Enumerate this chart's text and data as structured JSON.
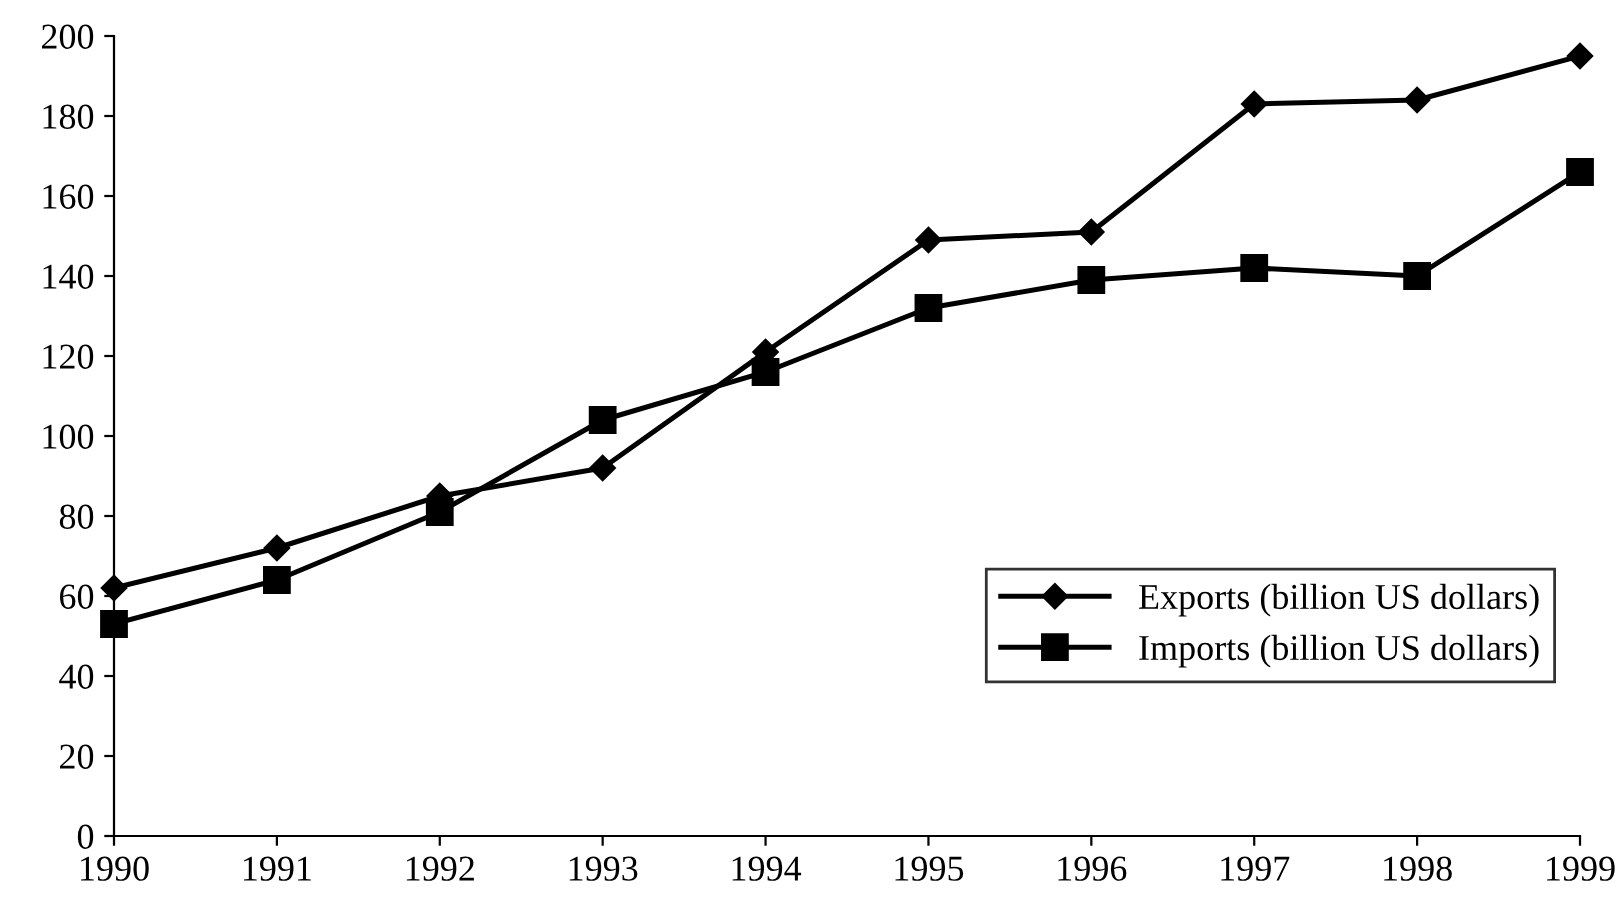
{
  "chart_data": {
    "type": "line",
    "x": [
      1990,
      1991,
      1992,
      1993,
      1994,
      1995,
      1996,
      1997,
      1998,
      1999
    ],
    "series": [
      {
        "name": "Exports (billion US dollars)",
        "color": "#000000",
        "marker": "diamond",
        "values": [
          62,
          72,
          85,
          92,
          121,
          149,
          151,
          183,
          184,
          195
        ]
      },
      {
        "name": "Imports (billion US dollars)",
        "color": "#000000",
        "marker": "square",
        "values": [
          53,
          64,
          81,
          104,
          116,
          132,
          139,
          142,
          140,
          166
        ]
      }
    ],
    "xlim": [
      1990,
      1999
    ],
    "xticks": [
      1990,
      1991,
      1992,
      1993,
      1994,
      1995,
      1996,
      1997,
      1998,
      1999
    ],
    "ylim": [
      0,
      200
    ],
    "yticks": [
      0,
      20,
      40,
      60,
      80,
      100,
      120,
      140,
      160,
      180,
      200
    ],
    "grid": false,
    "legend": "bottom right",
    "line_style": "solid"
  }
}
